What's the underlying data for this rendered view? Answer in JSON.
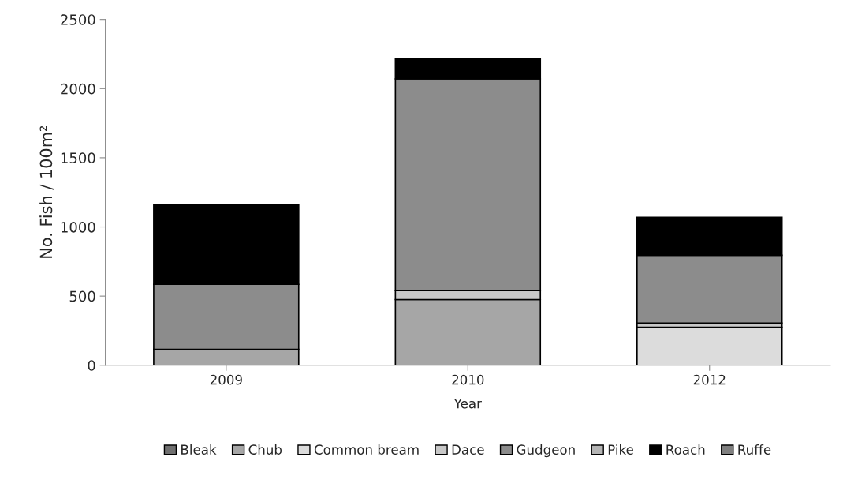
{
  "chart_data": {
    "type": "bar",
    "stacked": true,
    "xlabel": "Year",
    "ylabel": "No. Fish / 100m²",
    "categories": [
      "2009",
      "2010",
      "2012"
    ],
    "series": [
      {
        "name": "Bleak",
        "color": "#707070",
        "values": [
          0,
          0,
          0
        ]
      },
      {
        "name": "Chub",
        "color": "#a6a6a6",
        "values": [
          115,
          475,
          0
        ]
      },
      {
        "name": "Common bream",
        "color": "#dcdcdc",
        "values": [
          0,
          0,
          275
        ]
      },
      {
        "name": "Dace",
        "color": "#c8c8c8",
        "values": [
          0,
          65,
          30
        ]
      },
      {
        "name": "Gudgeon",
        "color": "#8c8c8c",
        "values": [
          470,
          1530,
          490
        ]
      },
      {
        "name": "Pike",
        "color": "#b4b4b4",
        "values": [
          0,
          0,
          0
        ]
      },
      {
        "name": "Roach",
        "color": "#000000",
        "values": [
          575,
          145,
          275
        ]
      },
      {
        "name": "Ruffe",
        "color": "#7f7f7f",
        "values": [
          0,
          0,
          0
        ]
      }
    ],
    "ylim": [
      0,
      2500
    ],
    "yticks": [
      0,
      500,
      1000,
      1500,
      2000,
      2500
    ],
    "legend": "bottom",
    "grid": false
  }
}
